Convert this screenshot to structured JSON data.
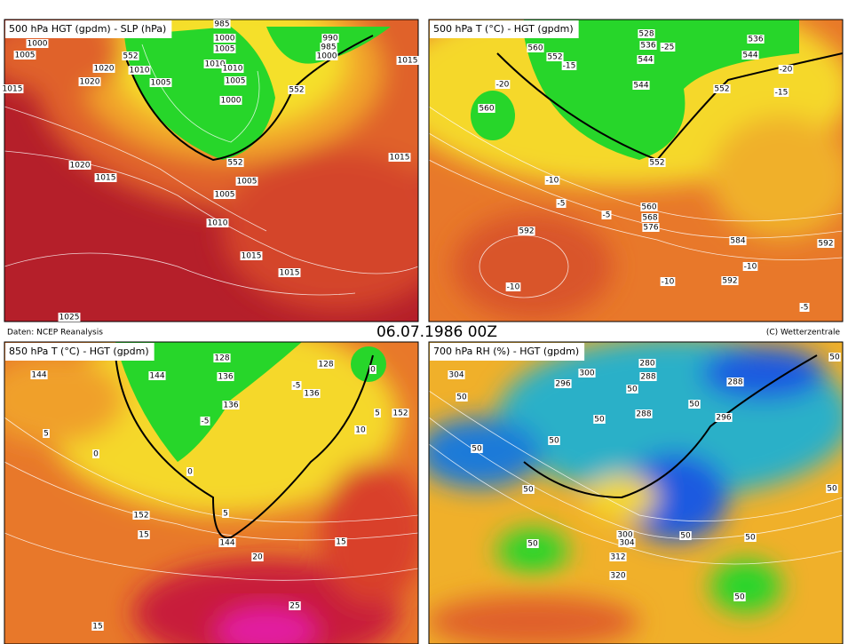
{
  "header": {
    "source": "Daten: NCEP Reanalysis",
    "date": "06.07.1986 00Z",
    "copyright": "(C) Wetterzentrale"
  },
  "panels": [
    {
      "title": "500 hPa HGT (gpdm) - SLP (hPa)",
      "labels": [
        "1000",
        "1005",
        "1020",
        "1020",
        "1015",
        "552",
        "1010",
        "1005",
        "985",
        "1000",
        "1005",
        "1010",
        "1010",
        "1005",
        "1000",
        "990",
        "985",
        "1000",
        "552",
        "1020",
        "1015",
        "552",
        "1005",
        "1005",
        "1010",
        "1015",
        "1015",
        "1015",
        "1025",
        "1015"
      ]
    },
    {
      "title": "500 hPa T (°C) - HGT (gpdm)",
      "labels": [
        "560",
        "552",
        "528",
        "536",
        "544",
        "536",
        "544",
        "-20",
        "560",
        "544",
        "552",
        "-15",
        "-20",
        "-10",
        "-5",
        "-5",
        "552",
        "560",
        "568",
        "576",
        "592",
        "584",
        "-10",
        "-10",
        "592",
        "-10",
        "-5",
        "592",
        "-25",
        "-15"
      ]
    },
    {
      "title": "850 hPa T (°C) - HGT (gpdm)",
      "labels": [
        "144",
        "128",
        "128",
        "144",
        "136",
        "136",
        "136",
        "-5",
        "5",
        "152",
        "0",
        "5",
        "0",
        "5",
        "152",
        "15",
        "144",
        "20",
        "15",
        "10",
        "25",
        "15",
        "-5",
        "0"
      ]
    },
    {
      "title": "700 hPa RH (%) - HGT (gpdm)",
      "labels": [
        "304",
        "296",
        "300",
        "280",
        "288",
        "288",
        "50",
        "50",
        "296",
        "288",
        "50",
        "50",
        "50",
        "50",
        "50",
        "50",
        "50",
        "300",
        "304",
        "312",
        "50",
        "50",
        "320",
        "50",
        "50"
      ]
    }
  ]
}
